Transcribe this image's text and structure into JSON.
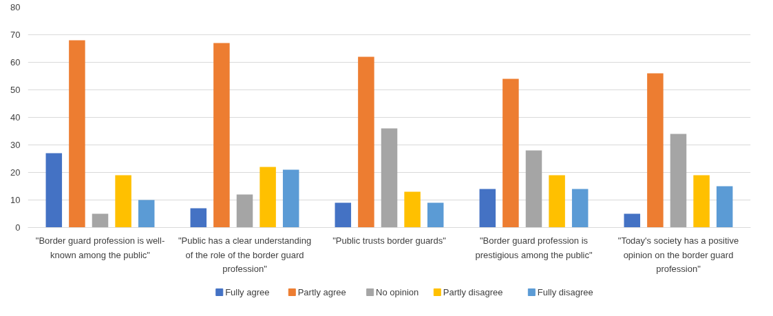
{
  "chart_data": {
    "type": "bar",
    "categories": [
      "\"Border guard profession is well-known among the public\"",
      "\"Public has a clear understanding of the role of the border guard profession\"",
      "\"Public trusts border guards\"",
      "\"Border guard profession is prestigious among the public\"",
      "\"Today's society has a positive opinion on the border guard profession\""
    ],
    "series": [
      {
        "name": "Fully agree",
        "color": "#4472c4",
        "values": [
          27,
          7,
          9,
          14,
          5
        ]
      },
      {
        "name": "Partly agree",
        "color": "#ed7d31",
        "values": [
          68,
          67,
          62,
          54,
          56
        ]
      },
      {
        "name": "No opinion",
        "color": "#a5a5a5",
        "values": [
          5,
          12,
          36,
          28,
          34
        ]
      },
      {
        "name": "Partly disagree",
        "color": "#ffc000",
        "values": [
          19,
          22,
          13,
          19,
          19
        ]
      },
      {
        "name": "Fully disagree",
        "color": "#5b9bd5",
        "values": [
          10,
          21,
          9,
          14,
          15
        ]
      }
    ],
    "ylim": [
      0,
      80
    ],
    "yticks": [
      0,
      10,
      20,
      30,
      40,
      50,
      60,
      70,
      80
    ],
    "grid": "y",
    "legend": "bottom"
  }
}
